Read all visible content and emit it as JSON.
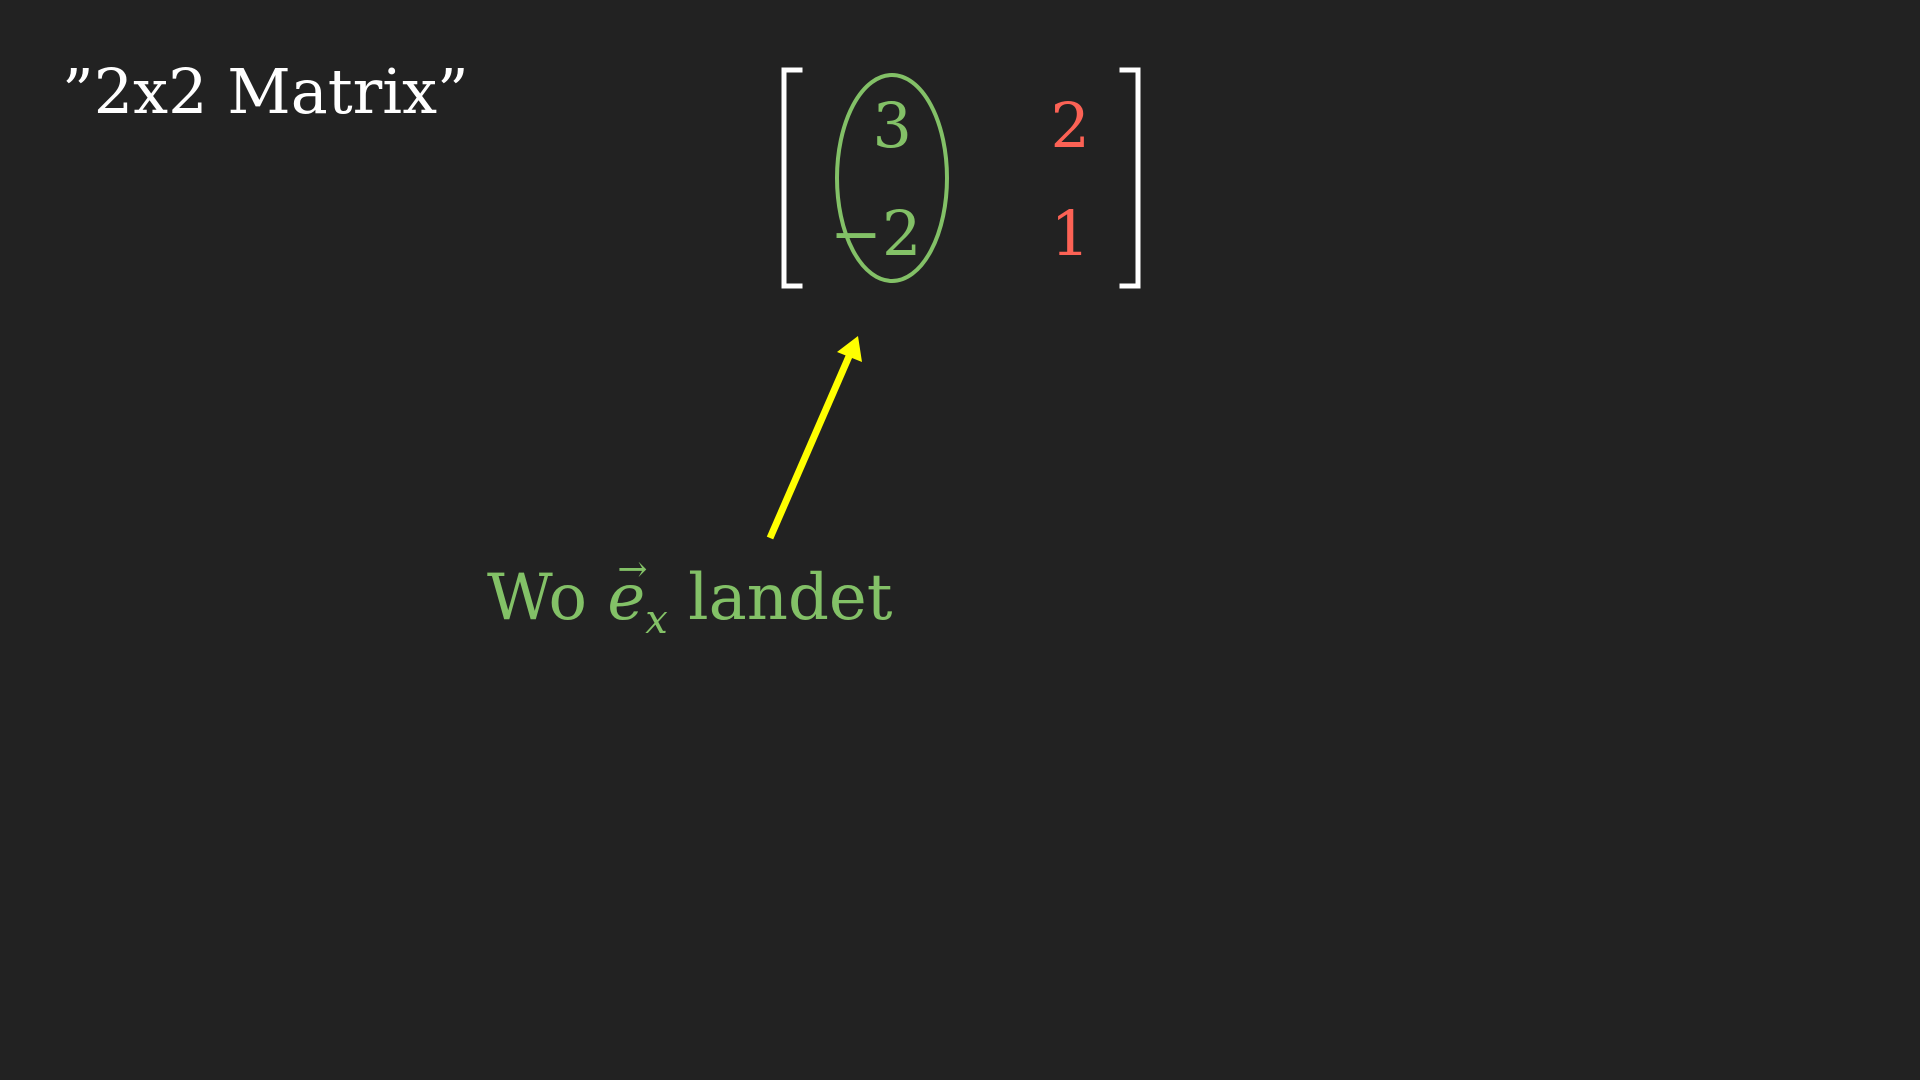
{
  "title": "”2x2 Matrix”",
  "matrix": {
    "columns": [
      {
        "name": "first-column",
        "entries": [
          "3",
          "−2"
        ]
      },
      {
        "name": "second-column",
        "entries": [
          "2",
          "1"
        ]
      }
    ]
  },
  "annotation": {
    "word1": "Wo",
    "vector_symbol": "e",
    "vector_arrow": "→",
    "vector_subscript": "x",
    "word2": "landet"
  },
  "colors": {
    "background": "#222222",
    "text": "#ffffff",
    "bracket": "#ffffff",
    "green": "#83c167",
    "red": "#fc6255",
    "arrow": "#ffff00"
  }
}
